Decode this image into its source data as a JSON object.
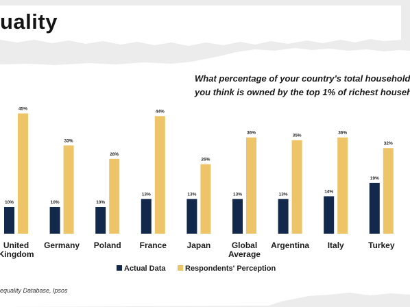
{
  "header": {
    "title": "uality",
    "question_line1": "What percentage of your country's total household",
    "question_line2": "you think is owned by the top 1% of richest househ"
  },
  "footer": {
    "source": "equality Database, Ipsos"
  },
  "colors": {
    "actual": "#13294b",
    "perception": "#eec468"
  },
  "chart_data": {
    "type": "bar",
    "categories": [
      [
        "United",
        "Kingdom"
      ],
      [
        "Germany"
      ],
      [
        "Poland"
      ],
      [
        "France"
      ],
      [
        "Japan"
      ],
      [
        "Global",
        "Average"
      ],
      [
        "Argentina"
      ],
      [
        "Italy"
      ],
      [
        "Turkey"
      ]
    ],
    "series": [
      {
        "name": "Actual Data",
        "values": [
          10,
          10,
          10,
          13,
          13,
          13,
          13,
          14,
          19
        ]
      },
      {
        "name": "Respondents' Perception",
        "values": [
          45,
          33,
          28,
          44,
          26,
          36,
          35,
          36,
          32
        ]
      }
    ],
    "value_suffix": "%",
    "ylim": [
      0,
      50
    ],
    "grid": false,
    "legend_position": "bottom"
  }
}
